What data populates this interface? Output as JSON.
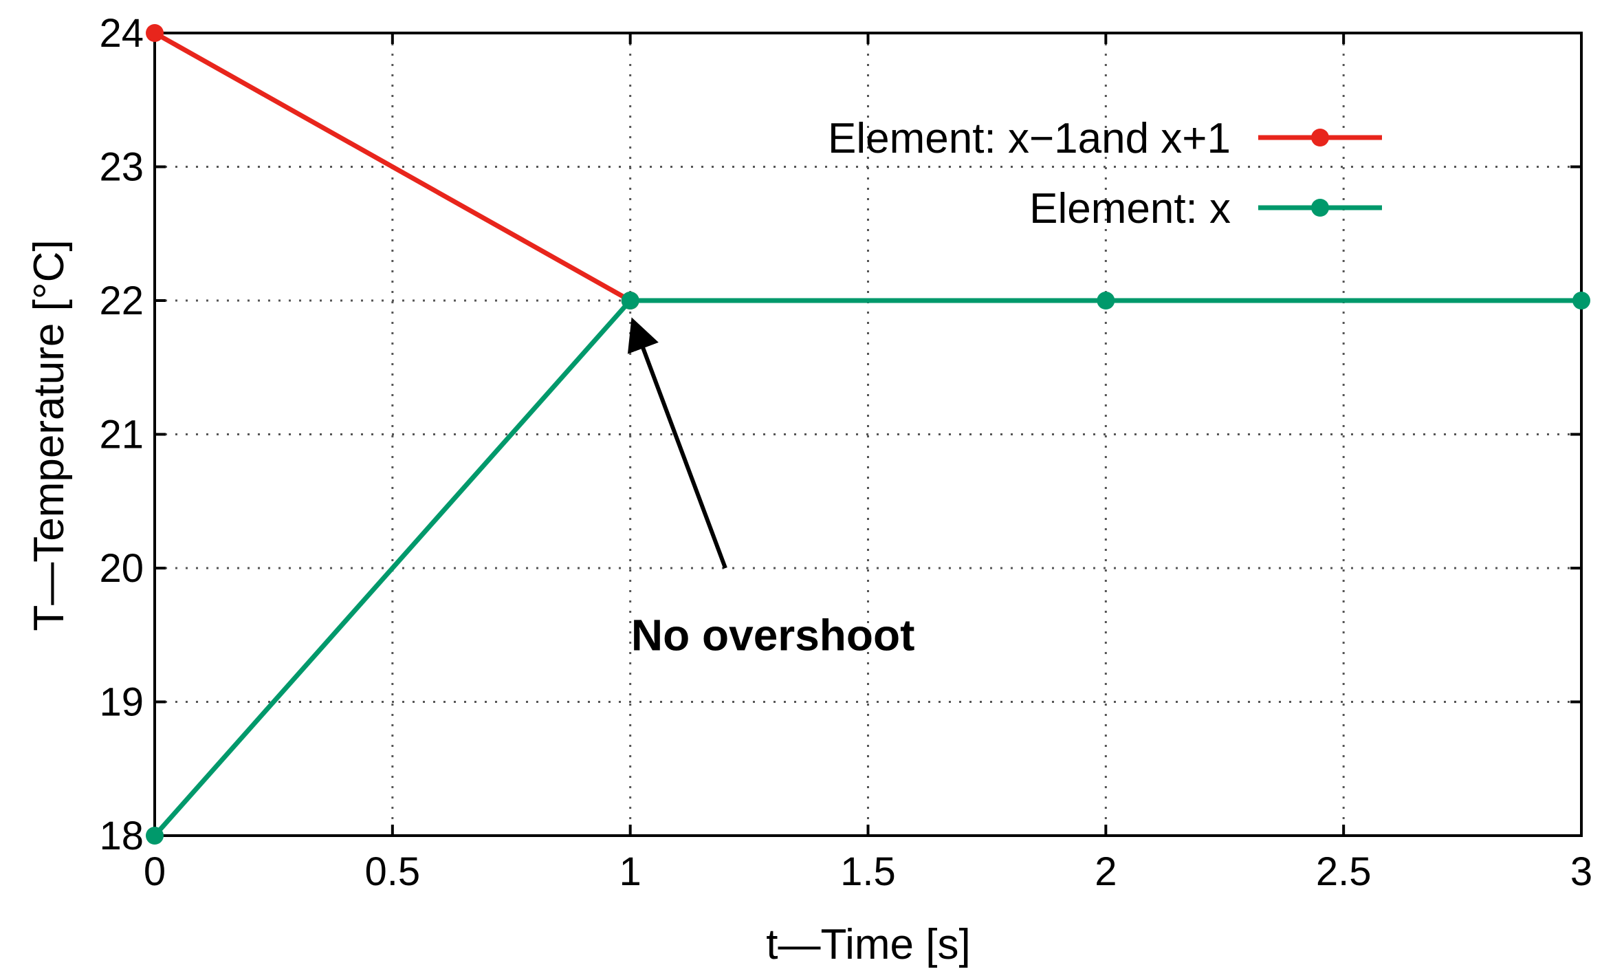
{
  "chart_data": {
    "type": "line",
    "title": "",
    "xlabel": "t—Time [s]",
    "ylabel": "T—Temperature [°C]",
    "xlim": [
      0,
      3
    ],
    "ylim": [
      18,
      24
    ],
    "xticks": [
      0,
      0.5,
      1,
      1.5,
      2,
      2.5,
      3
    ],
    "xtick_labels": [
      "0",
      "0.5",
      "1",
      "1.5",
      "2",
      "2.5",
      "3"
    ],
    "yticks": [
      18,
      19,
      20,
      21,
      22,
      23,
      24
    ],
    "ytick_labels": [
      "18",
      "19",
      "20",
      "21",
      "22",
      "23",
      "24"
    ],
    "grid": true,
    "legend_position": "top-right",
    "series": [
      {
        "name": "Element: x−1and x+1",
        "color": "#e8251c",
        "x": [
          0,
          1
        ],
        "y": [
          24,
          22
        ]
      },
      {
        "name": "Element: x",
        "color": "#00996b",
        "x": [
          0,
          1,
          2,
          3
        ],
        "y": [
          18,
          22,
          22,
          22
        ]
      }
    ],
    "annotation": {
      "text": "No overshoot",
      "target": [
        1,
        22
      ],
      "arrow_from": [
        1.2,
        20
      ]
    }
  }
}
